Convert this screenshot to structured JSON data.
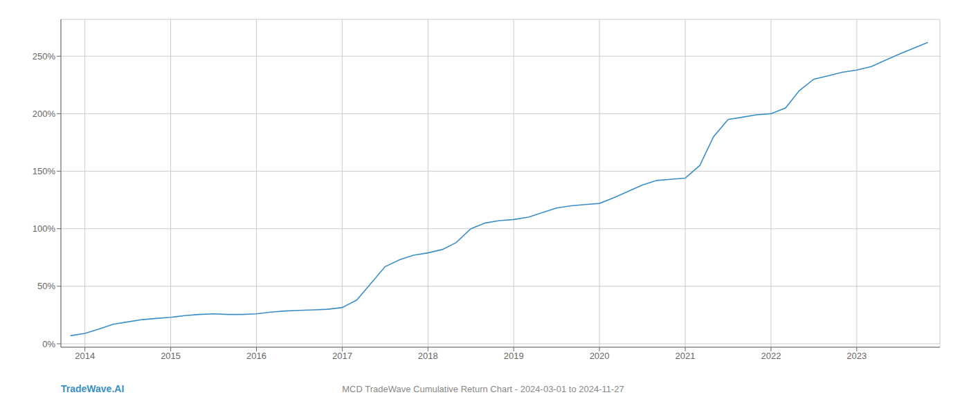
{
  "chart_data": {
    "type": "line",
    "title": "MCD TradeWave Cumulative Return Chart - 2024-03-01 to 2024-11-27",
    "annotations": [
      "TradeWave.AI"
    ],
    "x": [
      2013.83,
      2014.0,
      2014.17,
      2014.33,
      2014.5,
      2014.67,
      2014.83,
      2015.0,
      2015.17,
      2015.33,
      2015.5,
      2015.67,
      2015.83,
      2016.0,
      2016.17,
      2016.33,
      2016.5,
      2016.67,
      2016.83,
      2017.0,
      2017.17,
      2017.33,
      2017.5,
      2017.67,
      2017.83,
      2018.0,
      2018.17,
      2018.33,
      2018.5,
      2018.67,
      2018.83,
      2019.0,
      2019.17,
      2019.33,
      2019.5,
      2019.67,
      2019.83,
      2020.0,
      2020.17,
      2020.5,
      2020.67,
      2020.83,
      2021.0,
      2021.17,
      2021.33,
      2021.5,
      2021.67,
      2021.83,
      2022.0,
      2022.17,
      2022.33,
      2022.5,
      2022.67,
      2022.83,
      2023.0,
      2023.17,
      2023.5,
      2023.83
    ],
    "values": [
      0.07,
      0.09,
      0.13,
      0.17,
      0.19,
      0.21,
      0.22,
      0.23,
      0.245,
      0.255,
      0.26,
      0.255,
      0.255,
      0.26,
      0.275,
      0.285,
      0.29,
      0.295,
      0.3,
      0.315,
      0.38,
      0.52,
      0.67,
      0.73,
      0.77,
      0.79,
      0.82,
      0.88,
      1.0,
      1.05,
      1.07,
      1.08,
      1.1,
      1.14,
      1.18,
      1.2,
      1.21,
      1.22,
      1.27,
      1.38,
      1.42,
      1.43,
      1.44,
      1.55,
      1.8,
      1.95,
      1.97,
      1.99,
      2.0,
      2.05,
      2.2,
      2.3,
      2.33,
      2.36,
      2.38,
      2.41,
      2.52,
      2.62
    ],
    "color": "#3a8fc7",
    "xlim": [
      2013.72,
      2023.97
    ],
    "ylim": [
      -0.03,
      2.82
    ],
    "xticks": [
      2014,
      2015,
      2016,
      2017,
      2018,
      2019,
      2020,
      2021,
      2022,
      2023
    ],
    "yticks": [
      {
        "value": 0.0,
        "label": "0%"
      },
      {
        "value": 0.5,
        "label": "50%"
      },
      {
        "value": 1.0,
        "label": "100%"
      },
      {
        "value": 1.5,
        "label": "150%"
      },
      {
        "value": 2.0,
        "label": "200%"
      },
      {
        "value": 2.5,
        "label": "250%"
      }
    ],
    "grid": true
  }
}
